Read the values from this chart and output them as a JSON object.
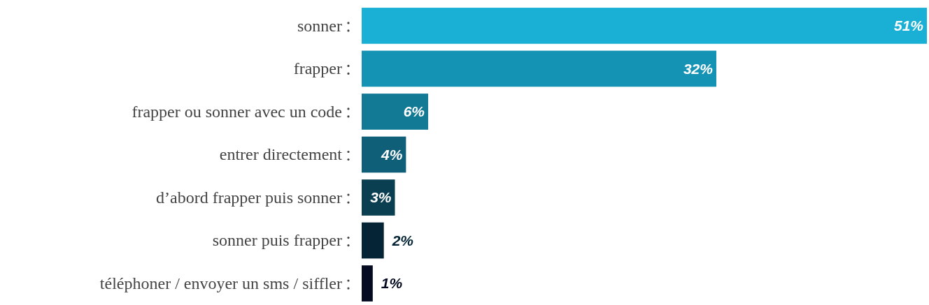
{
  "chart_data": {
    "type": "bar",
    "orientation": "horizontal",
    "categories": [
      "sonner",
      "frapper",
      "frapper ou sonner avec un code",
      "entrer directement",
      "d’abord frapper puis sonner",
      "sonner puis frapper",
      "téléphoner / envoyer un sms / siffler"
    ],
    "values": [
      51,
      32,
      6,
      4,
      3,
      2,
      1
    ],
    "value_labels": [
      "51%",
      "32%",
      "6%",
      "4%",
      "3%",
      "2%",
      "1%"
    ],
    "colors": [
      "#1aafd4",
      "#1593b5",
      "#137a96",
      "#0f5f78",
      "#0a3f52",
      "#052536",
      "#050b20"
    ]
  }
}
